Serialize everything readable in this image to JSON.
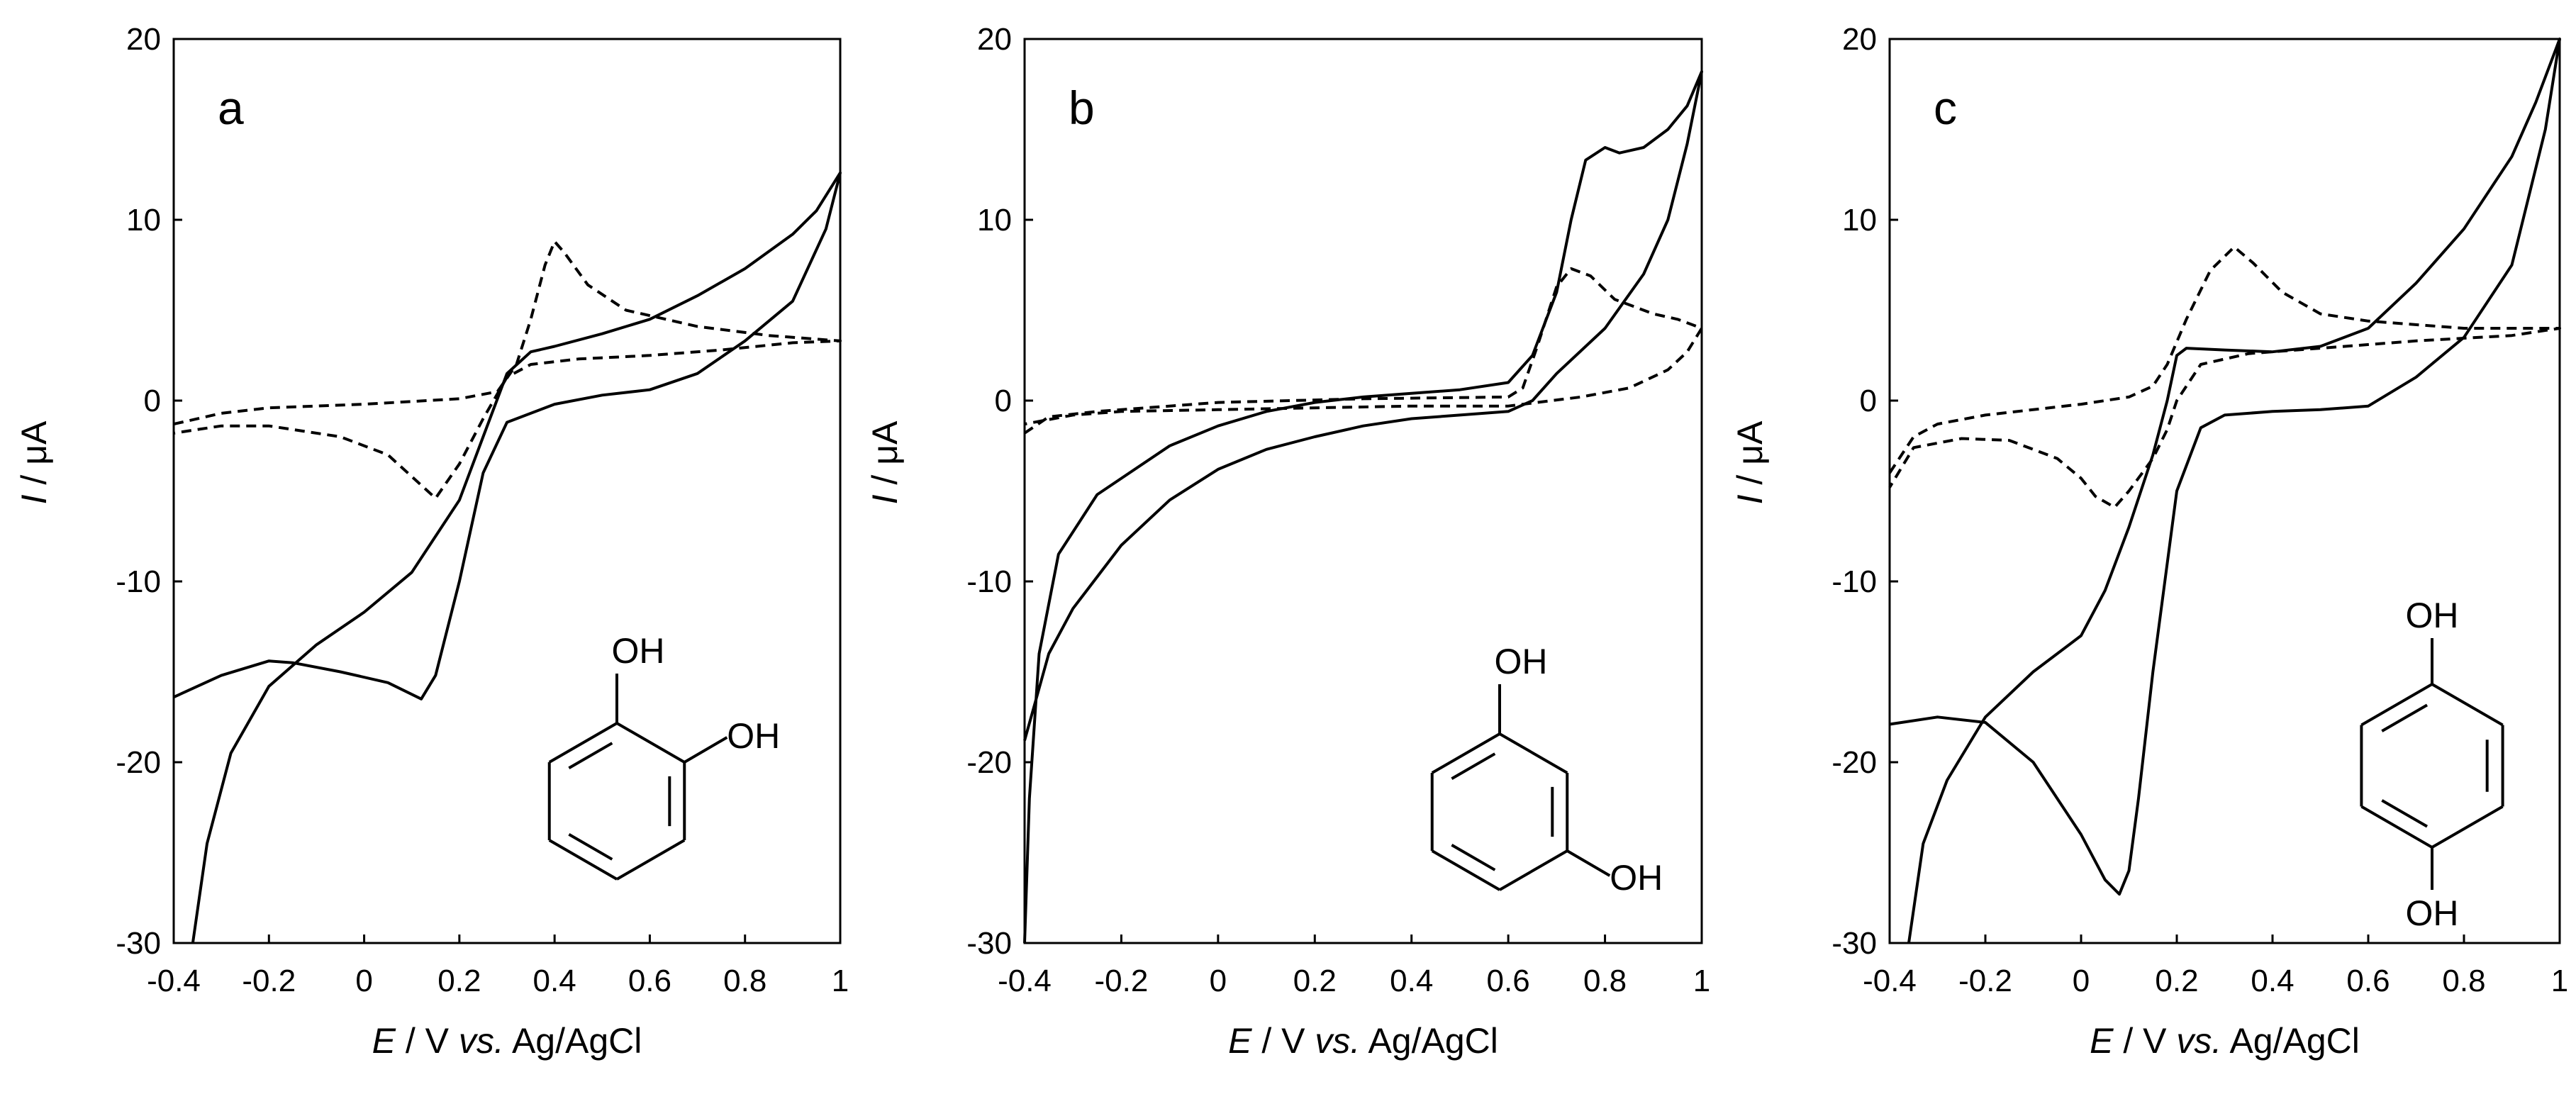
{
  "chart_data": [
    {
      "type": "line",
      "panel_label": "a",
      "xlabel": {
        "italic": "E",
        "mid": " / V ",
        "italic2": "vs.",
        "rest": " Ag/AgCl"
      },
      "ylabel": {
        "italic": "I",
        "rest": " / μA"
      },
      "xlim": [
        -0.4,
        1.0
      ],
      "ylim": [
        -30,
        20
      ],
      "x_ticks": [
        "-0.4",
        "-0.2",
        "0",
        "0.2",
        "0.4",
        "0.6",
        "0.8",
        "1"
      ],
      "y_ticks": [
        "20",
        "10",
        "0",
        "-10",
        "-20",
        "-30"
      ],
      "molecule": {
        "name": "catechol",
        "substituents": [
          "OH",
          "OH"
        ]
      },
      "series": [
        {
          "name": "solid",
          "style": "solid",
          "points": [
            [
              -0.36,
              -30
            ],
            [
              -0.33,
              -24.5
            ],
            [
              -0.28,
              -19.5
            ],
            [
              -0.2,
              -15.8
            ],
            [
              -0.1,
              -13.5
            ],
            [
              0,
              -11.7
            ],
            [
              0.1,
              -9.5
            ],
            [
              0.2,
              -5.5
            ],
            [
              0.25,
              -2
            ],
            [
              0.3,
              1.5
            ],
            [
              0.35,
              2.7
            ],
            [
              0.4,
              3.0
            ],
            [
              0.5,
              3.7
            ],
            [
              0.6,
              4.5
            ],
            [
              0.7,
              5.8
            ],
            [
              0.8,
              7.3
            ],
            [
              0.9,
              9.2
            ],
            [
              0.95,
              10.5
            ],
            [
              1.0,
              12.6
            ],
            [
              0.97,
              9.5
            ],
            [
              0.9,
              5.5
            ],
            [
              0.8,
              3.3
            ],
            [
              0.7,
              1.5
            ],
            [
              0.6,
              0.6
            ],
            [
              0.5,
              0.3
            ],
            [
              0.4,
              -0.2
            ],
            [
              0.3,
              -1.2
            ],
            [
              0.25,
              -4
            ],
            [
              0.2,
              -10
            ],
            [
              0.15,
              -15.2
            ],
            [
              0.12,
              -16.5
            ],
            [
              0.05,
              -15.6
            ],
            [
              -0.05,
              -15.0
            ],
            [
              -0.15,
              -14.5
            ],
            [
              -0.2,
              -14.4
            ],
            [
              -0.3,
              -15.2
            ],
            [
              -0.4,
              -16.4
            ]
          ]
        },
        {
          "name": "dashed",
          "style": "dashed",
          "points": [
            [
              -0.4,
              -1.3
            ],
            [
              -0.3,
              -0.7
            ],
            [
              -0.2,
              -0.4
            ],
            [
              0,
              -0.2
            ],
            [
              0.2,
              0.1
            ],
            [
              0.28,
              0.5
            ],
            [
              0.32,
              2.0
            ],
            [
              0.35,
              4.5
            ],
            [
              0.38,
              7.5
            ],
            [
              0.4,
              8.8
            ],
            [
              0.42,
              8.2
            ],
            [
              0.47,
              6.4
            ],
            [
              0.55,
              5.0
            ],
            [
              0.7,
              4.1
            ],
            [
              0.85,
              3.6
            ],
            [
              1.0,
              3.3
            ],
            [
              0.9,
              3.2
            ],
            [
              0.75,
              2.8
            ],
            [
              0.6,
              2.5
            ],
            [
              0.45,
              2.3
            ],
            [
              0.35,
              2.0
            ],
            [
              0.3,
              1.3
            ],
            [
              0.25,
              -1.0
            ],
            [
              0.2,
              -3.5
            ],
            [
              0.15,
              -5.4
            ],
            [
              0.1,
              -4.2
            ],
            [
              0.05,
              -3.0
            ],
            [
              -0.05,
              -2.0
            ],
            [
              -0.2,
              -1.4
            ],
            [
              -0.3,
              -1.4
            ],
            [
              -0.4,
              -1.8
            ]
          ]
        }
      ]
    },
    {
      "type": "line",
      "panel_label": "b",
      "xlabel": {
        "italic": "E",
        "mid": " / V ",
        "italic2": "vs.",
        "rest": " Ag/AgCl"
      },
      "ylabel": {
        "italic": "I",
        "rest": " / μA"
      },
      "xlim": [
        -0.4,
        1.0
      ],
      "ylim": [
        -30,
        20
      ],
      "x_ticks": [
        "-0.4",
        "-0.2",
        "0",
        "0.2",
        "0.4",
        "0.6",
        "0.8",
        "1"
      ],
      "y_ticks": [
        "20",
        "10",
        "0",
        "-10",
        "-20",
        "-30"
      ],
      "molecule": {
        "name": "resorcinol",
        "substituents": [
          "OH",
          "OH"
        ]
      },
      "series": [
        {
          "name": "solid",
          "style": "solid",
          "points": [
            [
              -0.4,
              -30
            ],
            [
              -0.39,
              -22
            ],
            [
              -0.37,
              -14
            ],
            [
              -0.33,
              -8.5
            ],
            [
              -0.25,
              -5.2
            ],
            [
              -0.1,
              -2.5
            ],
            [
              0,
              -1.4
            ],
            [
              0.1,
              -0.6
            ],
            [
              0.2,
              -0.1
            ],
            [
              0.3,
              0.2
            ],
            [
              0.4,
              0.4
            ],
            [
              0.5,
              0.6
            ],
            [
              0.6,
              1.0
            ],
            [
              0.65,
              2.5
            ],
            [
              0.7,
              6.0
            ],
            [
              0.73,
              10.0
            ],
            [
              0.76,
              13.3
            ],
            [
              0.8,
              14.0
            ],
            [
              0.83,
              13.7
            ],
            [
              0.88,
              14.0
            ],
            [
              0.93,
              15.0
            ],
            [
              0.97,
              16.3
            ],
            [
              1.0,
              18.2
            ],
            [
              0.97,
              14.2
            ],
            [
              0.93,
              10.0
            ],
            [
              0.88,
              7.0
            ],
            [
              0.8,
              4.0
            ],
            [
              0.7,
              1.5
            ],
            [
              0.65,
              0
            ],
            [
              0.6,
              -0.6
            ],
            [
              0.5,
              -0.8
            ],
            [
              0.4,
              -1.0
            ],
            [
              0.3,
              -1.4
            ],
            [
              0.2,
              -2.0
            ],
            [
              0.1,
              -2.7
            ],
            [
              0,
              -3.8
            ],
            [
              -0.1,
              -5.5
            ],
            [
              -0.2,
              -8.0
            ],
            [
              -0.3,
              -11.5
            ],
            [
              -0.35,
              -14
            ],
            [
              -0.4,
              -18.8
            ]
          ]
        },
        {
          "name": "dashed",
          "style": "dashed",
          "points": [
            [
              -0.4,
              -1.8
            ],
            [
              -0.35,
              -0.9
            ],
            [
              -0.25,
              -0.6
            ],
            [
              0,
              -0.1
            ],
            [
              0.3,
              0.1
            ],
            [
              0.6,
              0.2
            ],
            [
              0.63,
              0.7
            ],
            [
              0.66,
              3.0
            ],
            [
              0.7,
              6.3
            ],
            [
              0.73,
              7.3
            ],
            [
              0.77,
              6.9
            ],
            [
              0.82,
              5.6
            ],
            [
              0.9,
              4.8
            ],
            [
              0.95,
              4.5
            ],
            [
              1.0,
              4.0
            ],
            [
              0.97,
              2.7
            ],
            [
              0.93,
              1.7
            ],
            [
              0.85,
              0.7
            ],
            [
              0.75,
              0.2
            ],
            [
              0.6,
              -0.3
            ],
            [
              0.4,
              -0.3
            ],
            [
              0.2,
              -0.4
            ],
            [
              0,
              -0.5
            ],
            [
              -0.2,
              -0.6
            ],
            [
              -0.3,
              -0.8
            ],
            [
              -0.4,
              -1.3
            ]
          ]
        }
      ]
    },
    {
      "type": "line",
      "panel_label": "c",
      "xlabel": {
        "italic": "E",
        "mid": " / V ",
        "italic2": "vs.",
        "rest": " Ag/AgCl"
      },
      "ylabel": {
        "italic": "I",
        "rest": " / μA"
      },
      "xlim": [
        -0.4,
        1.0
      ],
      "ylim": [
        -30,
        20
      ],
      "x_ticks": [
        "-0.4",
        "-0.2",
        "0",
        "0.2",
        "0.4",
        "0.6",
        "0.8",
        "1"
      ],
      "y_ticks": [
        "20",
        "10",
        "0",
        "-10",
        "-20",
        "-30"
      ],
      "molecule": {
        "name": "hydroquinone",
        "substituents": [
          "OH",
          "OH"
        ]
      },
      "series": [
        {
          "name": "solid",
          "style": "solid",
          "points": [
            [
              -0.36,
              -30
            ],
            [
              -0.33,
              -24.5
            ],
            [
              -0.28,
              -21
            ],
            [
              -0.2,
              -17.5
            ],
            [
              -0.1,
              -15
            ],
            [
              0,
              -13
            ],
            [
              0.05,
              -10.5
            ],
            [
              0.1,
              -7
            ],
            [
              0.15,
              -3
            ],
            [
              0.18,
              0
            ],
            [
              0.2,
              2.5
            ],
            [
              0.22,
              2.9
            ],
            [
              0.3,
              2.8
            ],
            [
              0.4,
              2.7
            ],
            [
              0.5,
              3.0
            ],
            [
              0.6,
              4.0
            ],
            [
              0.7,
              6.5
            ],
            [
              0.8,
              9.5
            ],
            [
              0.9,
              13.5
            ],
            [
              0.95,
              16.5
            ],
            [
              1.0,
              20.0
            ],
            [
              0.97,
              15.0
            ],
            [
              0.9,
              7.5
            ],
            [
              0.8,
              3.5
            ],
            [
              0.7,
              1.3
            ],
            [
              0.6,
              -0.3
            ],
            [
              0.5,
              -0.5
            ],
            [
              0.4,
              -0.6
            ],
            [
              0.3,
              -0.8
            ],
            [
              0.25,
              -1.5
            ],
            [
              0.2,
              -5
            ],
            [
              0.15,
              -15
            ],
            [
              0.12,
              -22
            ],
            [
              0.1,
              -26
            ],
            [
              0.08,
              -27.3
            ],
            [
              0.05,
              -26.5
            ],
            [
              0,
              -24
            ],
            [
              -0.1,
              -20
            ],
            [
              -0.2,
              -17.8
            ],
            [
              -0.3,
              -17.5
            ],
            [
              -0.4,
              -17.9
            ]
          ]
        },
        {
          "name": "dashed",
          "style": "dashed",
          "points": [
            [
              -0.4,
              -4.0
            ],
            [
              -0.35,
              -2.0
            ],
            [
              -0.3,
              -1.3
            ],
            [
              -0.2,
              -0.8
            ],
            [
              0,
              -0.2
            ],
            [
              0.1,
              0.2
            ],
            [
              0.15,
              0.8
            ],
            [
              0.18,
              2.0
            ],
            [
              0.22,
              4.5
            ],
            [
              0.27,
              7.2
            ],
            [
              0.32,
              8.5
            ],
            [
              0.36,
              7.6
            ],
            [
              0.42,
              6.0
            ],
            [
              0.5,
              4.8
            ],
            [
              0.6,
              4.4
            ],
            [
              0.8,
              4.0
            ],
            [
              1.0,
              4.0
            ],
            [
              0.9,
              3.6
            ],
            [
              0.7,
              3.3
            ],
            [
              0.5,
              2.9
            ],
            [
              0.35,
              2.6
            ],
            [
              0.25,
              2.0
            ],
            [
              0.2,
              0
            ],
            [
              0.18,
              -1.6
            ],
            [
              0.15,
              -3.2
            ],
            [
              0.1,
              -5.0
            ],
            [
              0.07,
              -5.9
            ],
            [
              0.03,
              -5.3
            ],
            [
              0,
              -4.3
            ],
            [
              -0.05,
              -3.2
            ],
            [
              -0.15,
              -2.2
            ],
            [
              -0.25,
              -2.1
            ],
            [
              -0.35,
              -2.6
            ],
            [
              -0.4,
              -4.8
            ]
          ]
        }
      ]
    }
  ]
}
